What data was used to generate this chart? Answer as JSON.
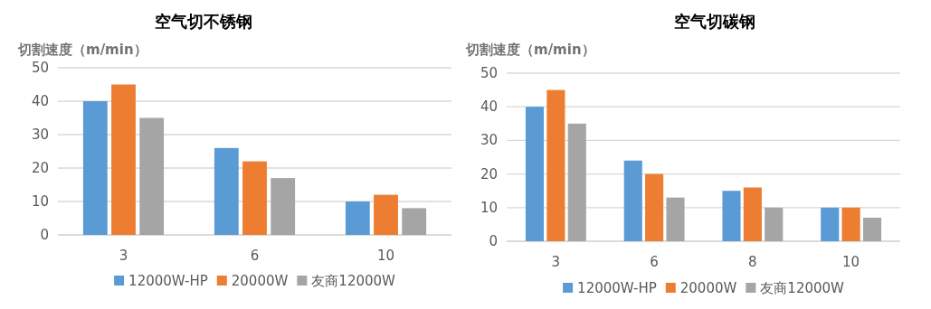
{
  "chart_data": [
    {
      "type": "bar",
      "title": "空气切不锈钢",
      "ylabel": "切割速度（m/min）",
      "categories": [
        "3",
        "6",
        "10"
      ],
      "series": [
        {
          "name": "12000W-HP",
          "color": "#5b9bd5",
          "values": [
            40,
            26,
            10
          ]
        },
        {
          "name": "20000W",
          "color": "#ed7d31",
          "values": [
            45,
            22,
            12
          ]
        },
        {
          "name": "友商12000W",
          "color": "#a5a5a5",
          "values": [
            35,
            17,
            8
          ]
        }
      ],
      "ylim": [
        0,
        50
      ],
      "yticks": [
        0,
        10,
        20,
        30,
        40,
        50
      ],
      "grid": "y",
      "legend": "bottom"
    },
    {
      "type": "bar",
      "title": "空气切碳钢",
      "ylabel": "切割速度（m/min）",
      "categories": [
        "3",
        "6",
        "8",
        "10"
      ],
      "series": [
        {
          "name": "12000W-HP",
          "color": "#5b9bd5",
          "values": [
            40,
            24,
            15,
            10
          ]
        },
        {
          "name": "20000W",
          "color": "#ed7d31",
          "values": [
            45,
            20,
            16,
            10
          ]
        },
        {
          "name": "友商12000W",
          "color": "#a5a5a5",
          "values": [
            35,
            13,
            10,
            7
          ]
        }
      ],
      "ylim": [
        0,
        50
      ],
      "yticks": [
        0,
        10,
        20,
        30,
        40,
        50
      ],
      "grid": "y",
      "legend": "bottom"
    }
  ]
}
